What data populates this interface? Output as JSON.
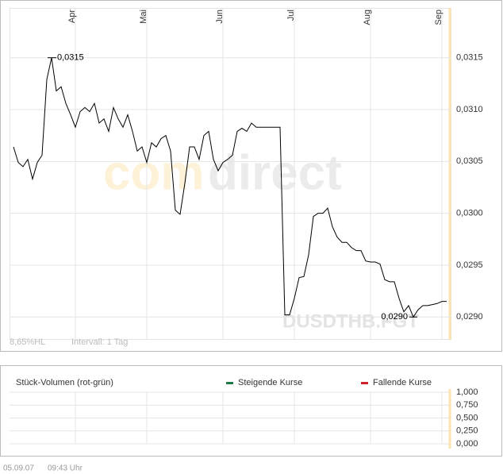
{
  "chart_data": [
    {
      "type": "line",
      "symbol": "DUSDTHB.FGT",
      "watermark": [
        "com",
        "direct"
      ],
      "range_note": "8,65%HL",
      "interval": "Intervall: 1 Tag",
      "categories": [
        null,
        null,
        null,
        null,
        null,
        null,
        null,
        null,
        null,
        null,
        null,
        null,
        null,
        "Apr",
        null,
        null,
        null,
        null,
        null,
        null,
        null,
        null,
        null,
        null,
        null,
        null,
        null,
        null,
        "Mai",
        null,
        null,
        null,
        null,
        null,
        null,
        null,
        null,
        null,
        null,
        null,
        null,
        null,
        null,
        null,
        "Jun",
        null,
        null,
        null,
        null,
        null,
        null,
        null,
        null,
        null,
        null,
        null,
        null,
        null,
        null,
        "Jul",
        null,
        null,
        null,
        null,
        null,
        null,
        null,
        null,
        null,
        null,
        null,
        null,
        null,
        null,
        null,
        "Aug",
        null,
        null,
        null,
        null,
        null,
        null,
        null,
        null,
        null,
        null,
        null,
        null,
        null,
        null,
        "Sep",
        null
      ],
      "series": [
        {
          "color": "#000000",
          "values": [
            0.03064,
            0.03049,
            0.03045,
            0.03052,
            0.03033,
            0.03049,
            0.03056,
            0.03129,
            0.0315,
            0.03118,
            0.03122,
            0.03106,
            0.03095,
            0.03083,
            0.03098,
            0.03102,
            0.03098,
            0.03106,
            0.03087,
            0.03091,
            0.03079,
            0.03102,
            0.03091,
            0.03083,
            0.03095,
            0.03079,
            0.0306,
            0.03064,
            0.03049,
            0.03068,
            0.03064,
            0.03072,
            0.03075,
            0.0306,
            0.03003,
            0.02999,
            0.03029,
            0.03064,
            0.03064,
            0.03052,
            0.03075,
            0.03079,
            0.03052,
            0.03041,
            0.03049,
            0.03052,
            0.03056,
            0.03079,
            0.03082,
            0.03079,
            0.03087,
            0.03083,
            0.03083,
            0.03083,
            0.03083,
            0.03083,
            0.03083,
            0.02902,
            0.02902,
            0.02918,
            0.02938,
            0.02939,
            0.0296,
            0.02997,
            0.03,
            0.03,
            0.03005,
            0.02987,
            0.02977,
            0.02972,
            0.02972,
            0.02967,
            0.02964,
            0.02964,
            0.02954,
            0.02953,
            0.02953,
            0.02951,
            0.02936,
            0.02934,
            0.02934,
            0.02918,
            0.02905,
            0.02911,
            0.029,
            0.02907,
            0.02911,
            0.02911,
            0.02912,
            0.02913,
            0.02915,
            0.02915
          ]
        }
      ],
      "annotations": [
        {
          "value": 0.0315,
          "label": "0,0315"
        },
        {
          "value": 0.029,
          "label": "0,0290"
        }
      ],
      "ylim": [
        0.02878,
        0.03198
      ],
      "yticks": [
        {
          "value": 0.029,
          "label": "0,0290"
        },
        {
          "value": 0.0295,
          "label": "0,0295"
        },
        {
          "value": 0.03,
          "label": "0,0300"
        },
        {
          "value": 0.0305,
          "label": "0,0305"
        },
        {
          "value": 0.031,
          "label": "0,0310"
        },
        {
          "value": 0.0315,
          "label": "0,0315"
        }
      ],
      "grid": true
    },
    {
      "type": "bar",
      "title": "Stück-Volumen (rot-grün)",
      "series": [
        {
          "name": "Steigende Kurse",
          "color": "#1e7a46",
          "values": []
        },
        {
          "name": "Fallende Kurse",
          "color": "#d0202a",
          "values": []
        }
      ],
      "ylim": [
        0,
        1
      ],
      "yticks": [
        {
          "value": 0,
          "label": "0,000"
        },
        {
          "value": 0.25,
          "label": "0,250"
        },
        {
          "value": 0.5,
          "label": "0,500"
        },
        {
          "value": 0.75,
          "label": "0,750"
        },
        {
          "value": 1,
          "label": "1,000"
        }
      ],
      "grid": true
    }
  ],
  "footer": {
    "date": "05.09.07",
    "time": "09:43 Uhr"
  }
}
